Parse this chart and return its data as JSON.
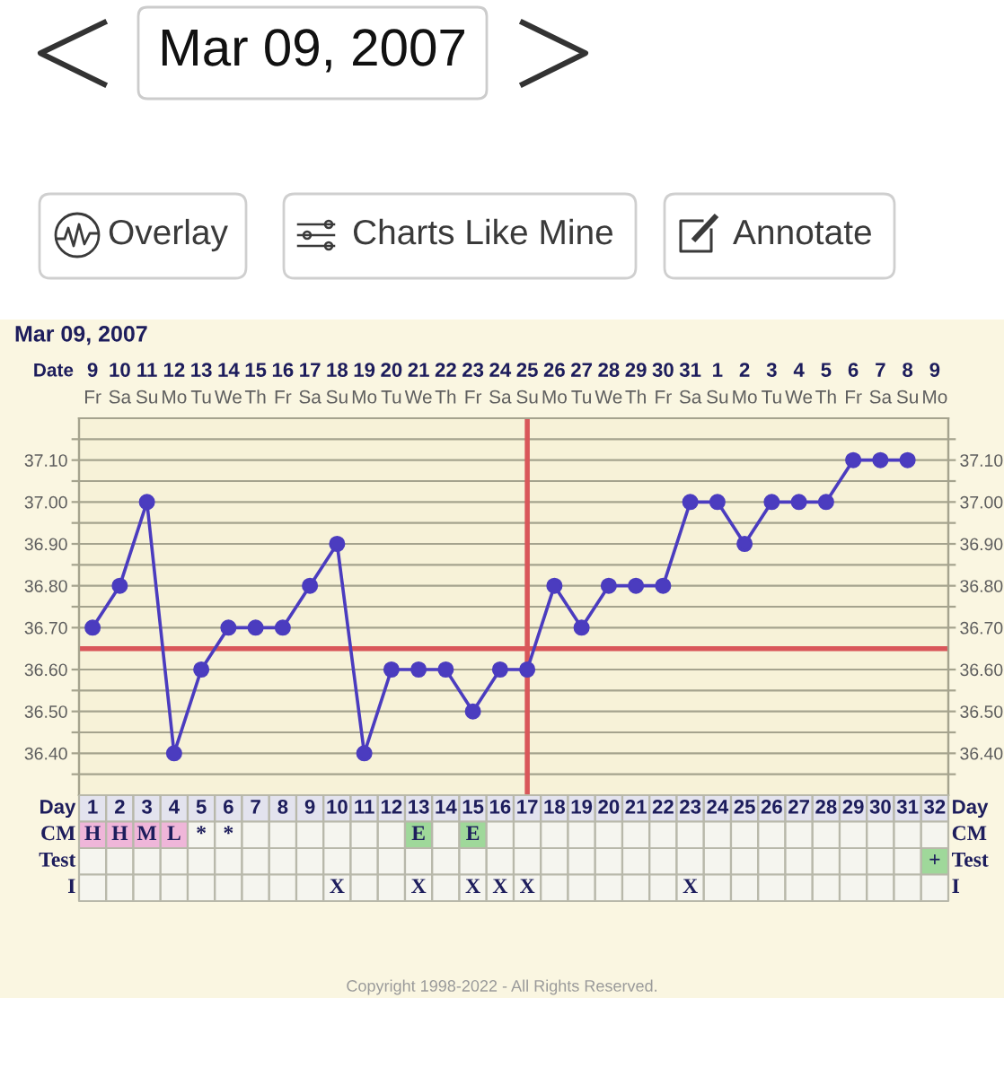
{
  "chart_data": [
    {
      "type": "line",
      "title": "Mar 09, 2007",
      "xlabel": "Date",
      "categories": [
        "9\nFr",
        "10\nSa",
        "11\nSu",
        "12\nMo",
        "13\nTu",
        "14\nWe",
        "15\nTh",
        "16\nFr",
        "17\nSa",
        "18\nSu",
        "19\nMo",
        "20\nTu",
        "21\nWe",
        "22\nTh",
        "23\nFr",
        "24\nSa",
        "25\nSu",
        "26\nMo",
        "27\nTu",
        "28\nWe",
        "29\nTh",
        "30\nFr",
        "31\nSa",
        "1\nSu",
        "2\nMo",
        "3\nTu",
        "4\nWe",
        "5\nTh",
        "6\nFr",
        "7\nSa",
        "8\nSu",
        "9\nMo"
      ],
      "series": [
        {
          "color": "#4b3cbf",
          "values": [
            36.7,
            36.8,
            37.0,
            36.4,
            36.6,
            36.7,
            36.7,
            36.7,
            36.8,
            36.9,
            36.4,
            36.6,
            36.6,
            36.6,
            36.5,
            36.6,
            36.6,
            36.8,
            36.7,
            36.8,
            36.8,
            36.8,
            37.0,
            37.0,
            36.9,
            37.0,
            37.0,
            37.0,
            37.1,
            37.1,
            37.1,
            null
          ]
        }
      ],
      "marker": "circle",
      "grid": true,
      "ylim": [
        36.3,
        37.2
      ],
      "yticks": [
        {
          "value": 36.35,
          "label": null
        },
        {
          "value": 36.4,
          "label": "36.40"
        },
        {
          "value": 36.45,
          "label": null
        },
        {
          "value": 36.5,
          "label": "36.50"
        },
        {
          "value": 36.55,
          "label": null
        },
        {
          "value": 36.6,
          "label": "36.60"
        },
        {
          "value": 36.7,
          "label": "36.70"
        },
        {
          "value": 36.75,
          "label": null
        },
        {
          "value": 36.8,
          "label": "36.80"
        },
        {
          "value": 36.85,
          "label": null
        },
        {
          "value": 36.9,
          "label": "36.90"
        },
        {
          "value": 36.95,
          "label": null
        },
        {
          "value": 37.0,
          "label": "37.00"
        },
        {
          "value": 37.05,
          "label": null
        },
        {
          "value": 37.1,
          "label": "37.10"
        },
        {
          "value": 37.15,
          "label": null
        }
      ],
      "y2lim": [
        36.3,
        37.2
      ],
      "y2ticks": [
        {
          "value": 36.35,
          "label": null
        },
        {
          "value": 36.4,
          "label": "36.40"
        },
        {
          "value": 36.45,
          "label": null
        },
        {
          "value": 36.5,
          "label": "36.50"
        },
        {
          "value": 36.55,
          "label": null
        },
        {
          "value": 36.6,
          "label": "36.60"
        },
        {
          "value": 36.7,
          "label": "36.70"
        },
        {
          "value": 36.75,
          "label": null
        },
        {
          "value": 36.8,
          "label": "36.80"
        },
        {
          "value": 36.85,
          "label": null
        },
        {
          "value": 36.9,
          "label": "36.90"
        },
        {
          "value": 36.95,
          "label": null
        },
        {
          "value": 37.0,
          "label": "37.00"
        },
        {
          "value": 37.05,
          "label": null
        },
        {
          "value": 37.1,
          "label": "37.10"
        },
        {
          "value": 37.15,
          "label": null
        }
      ],
      "ref_lines": [
        {
          "axis": "y",
          "value": 36.65,
          "color": "#d9575a"
        },
        {
          "axis": "x",
          "value": "25\nSu",
          "color": "#d9575a"
        }
      ],
      "annotations": [
        "Mar 09, 2007",
        "Overlay",
        "Charts Like Mine",
        "Annotate",
        "Copyright 1998-2022 - All Rights Reserved."
      ]
    },
    {
      "type": "heatmap",
      "xlabel": "Day",
      "categories": [
        "1",
        "2",
        "3",
        "4",
        "5",
        "6",
        "7",
        "8",
        "9",
        "10",
        "11",
        "12",
        "13",
        "14",
        "15",
        "16",
        "17",
        "18",
        "19",
        "20",
        "21",
        "22",
        "23",
        "24",
        "25",
        "26",
        "27",
        "28",
        "29",
        "30",
        "31",
        "32"
      ],
      "y_categories": [
        "CM",
        "Test",
        "I"
      ],
      "y2_categories": [
        "CM",
        "Test",
        "I"
      ],
      "cells": [
        [
          null,
          null,
          null,
          null,
          null,
          null,
          null,
          null,
          null,
          null,
          null,
          null,
          null,
          null,
          null,
          null,
          null,
          null,
          null,
          null,
          null,
          null,
          null,
          null,
          null,
          null,
          null,
          null,
          null,
          null,
          null,
          null
        ],
        [
          null,
          null,
          null,
          null,
          null,
          null,
          null,
          null,
          null,
          null,
          null,
          null,
          null,
          null,
          null,
          null,
          null,
          null,
          null,
          null,
          null,
          null,
          null,
          null,
          null,
          null,
          null,
          null,
          null,
          null,
          null,
          null
        ],
        [
          null,
          null,
          null,
          null,
          null,
          null,
          null,
          null,
          null,
          null,
          null,
          null,
          null,
          null,
          null,
          null,
          null,
          null,
          null,
          null,
          null,
          null,
          null,
          null,
          null,
          null,
          null,
          null,
          null,
          null,
          null,
          null
        ]
      ],
      "cell_labels": [
        [
          "H",
          "H",
          "M",
          "L",
          "*",
          "*",
          null,
          null,
          null,
          null,
          null,
          null,
          "E",
          null,
          "E",
          null,
          null,
          null,
          null,
          null,
          null,
          null,
          null,
          null,
          null,
          null,
          null,
          null,
          null,
          null,
          null,
          null
        ],
        [
          null,
          null,
          null,
          null,
          null,
          null,
          null,
          null,
          null,
          null,
          null,
          null,
          null,
          null,
          null,
          null,
          null,
          null,
          null,
          null,
          null,
          null,
          null,
          null,
          null,
          null,
          null,
          null,
          null,
          null,
          null,
          "+"
        ],
        [
          null,
          null,
          null,
          null,
          null,
          null,
          null,
          null,
          null,
          "X",
          null,
          null,
          "X",
          null,
          "X",
          "X",
          "X",
          null,
          null,
          null,
          null,
          null,
          "X",
          null,
          null,
          null,
          null,
          null,
          null,
          null,
          null,
          null
        ]
      ],
      "colors": [
        [
          "#efb6d9",
          "#efb6d9",
          "#efb6d9",
          "#efb6d9",
          null,
          null,
          null,
          null,
          null,
          null,
          null,
          null,
          "#9fd89a",
          null,
          "#9fd89a",
          null,
          null,
          null,
          null,
          null,
          null,
          null,
          null,
          null,
          null,
          null,
          null,
          null,
          null,
          null,
          null,
          null
        ],
        [
          null,
          null,
          null,
          null,
          null,
          null,
          null,
          null,
          null,
          null,
          null,
          null,
          null,
          null,
          null,
          null,
          null,
          null,
          null,
          null,
          null,
          null,
          null,
          null,
          null,
          null,
          null,
          null,
          null,
          null,
          null,
          "#9fd89a"
        ],
        [
          null,
          null,
          null,
          null,
          null,
          null,
          null,
          null,
          null,
          null,
          null,
          null,
          null,
          null,
          null,
          null,
          null,
          null,
          null,
          null,
          null,
          null,
          null,
          null,
          null,
          null,
          null,
          null,
          null,
          null,
          null,
          null
        ]
      ]
    }
  ]
}
